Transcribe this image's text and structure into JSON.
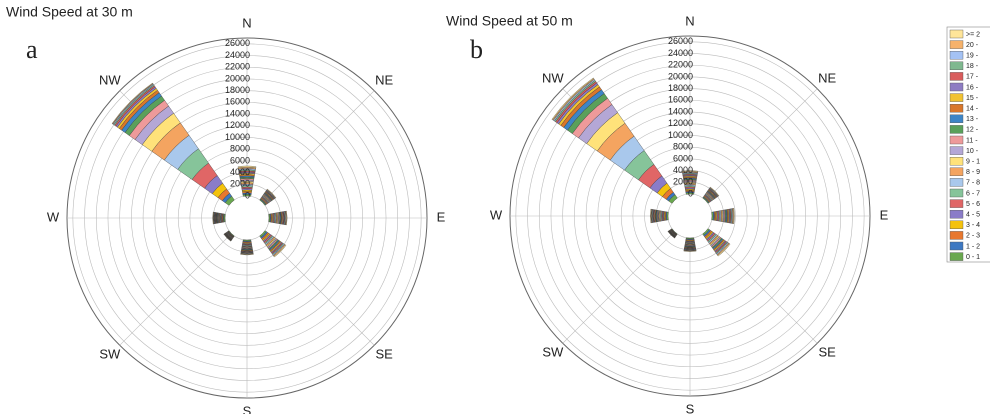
{
  "chart_data": [
    {
      "type": "windrose",
      "title": "Wind Speed at 30 m",
      "panel_label": "a",
      "categories": [
        "N",
        "NE",
        "E",
        "SE",
        "S",
        "SW",
        "W",
        "NW"
      ],
      "rlim": [
        0,
        27000
      ],
      "rticks": [
        0,
        2000,
        4000,
        6000,
        8000,
        10000,
        12000,
        14000,
        16000,
        18000,
        20000,
        22000,
        24000,
        26000
      ],
      "series": [
        {
          "name": "0 - 1",
          "color": "#6aa84f",
          "values": [
            300,
            150,
            200,
            300,
            200,
            100,
            200,
            800
          ]
        },
        {
          "name": "1 - 2",
          "color": "#3d78c2",
          "values": [
            250,
            120,
            150,
            250,
            150,
            60,
            120,
            600
          ]
        },
        {
          "name": "2 - 3",
          "color": "#e8782f",
          "values": [
            250,
            120,
            150,
            250,
            150,
            60,
            120,
            900
          ]
        },
        {
          "name": "3 - 4",
          "color": "#f4c20d",
          "values": [
            250,
            110,
            150,
            220,
            130,
            50,
            100,
            1200
          ]
        },
        {
          "name": "4 - 5",
          "color": "#8a7cc8",
          "values": [
            250,
            110,
            150,
            220,
            120,
            50,
            100,
            1600
          ]
        },
        {
          "name": "5 - 6",
          "color": "#e06666",
          "values": [
            250,
            110,
            150,
            220,
            120,
            50,
            100,
            2600
          ]
        },
        {
          "name": "6 - 7",
          "color": "#86c49a",
          "values": [
            250,
            110,
            150,
            200,
            120,
            50,
            100,
            3000
          ]
        },
        {
          "name": "7 - 8",
          "color": "#a9c8ec",
          "values": [
            250,
            110,
            150,
            200,
            120,
            50,
            100,
            2800
          ]
        },
        {
          "name": "8 - 9",
          "color": "#f4a460",
          "values": [
            250,
            100,
            150,
            200,
            110,
            50,
            90,
            2600
          ]
        },
        {
          "name": "9 - 1",
          "color": "#ffe27a",
          "values": [
            250,
            100,
            150,
            200,
            110,
            50,
            90,
            2000
          ]
        },
        {
          "name": "10 -",
          "color": "#b4a7d6",
          "values": [
            230,
            100,
            140,
            200,
            110,
            50,
            90,
            1500
          ]
        },
        {
          "name": "11 -",
          "color": "#ee9a9a",
          "values": [
            230,
            100,
            140,
            190,
            110,
            50,
            90,
            1200
          ]
        },
        {
          "name": "12 -",
          "color": "#5aa05a",
          "values": [
            230,
            100,
            140,
            190,
            110,
            50,
            90,
            900
          ]
        },
        {
          "name": "13 -",
          "color": "#3d85c6",
          "values": [
            220,
            100,
            130,
            180,
            100,
            40,
            80,
            700
          ]
        },
        {
          "name": "14 -",
          "color": "#d9772b",
          "values": [
            220,
            100,
            130,
            180,
            100,
            40,
            80,
            500
          ]
        },
        {
          "name": "15 -",
          "color": "#f1c232",
          "values": [
            220,
            100,
            130,
            180,
            100,
            40,
            80,
            400
          ]
        },
        {
          "name": "16 -",
          "color": "#8e7cc3",
          "values": [
            210,
            90,
            130,
            170,
            100,
            40,
            80,
            300
          ]
        },
        {
          "name": "17 -",
          "color": "#d95c5c",
          "values": [
            210,
            90,
            130,
            170,
            100,
            40,
            80,
            250
          ]
        },
        {
          "name": "18 -",
          "color": "#7fb88f",
          "values": [
            210,
            90,
            120,
            170,
            100,
            40,
            80,
            200
          ]
        },
        {
          "name": "19 -",
          "color": "#a4c2f4",
          "values": [
            200,
            90,
            120,
            160,
            100,
            40,
            80,
            150
          ]
        },
        {
          "name": "20 -",
          "color": "#f6b26b",
          "values": [
            200,
            90,
            120,
            160,
            100,
            40,
            80,
            100
          ]
        },
        {
          "name": ">= 2",
          "color": "#ffe599",
          "values": [
            200,
            90,
            120,
            160,
            100,
            40,
            80,
            100
          ]
        }
      ]
    },
    {
      "type": "windrose",
      "title": "Wind Speed at 50 m",
      "panel_label": "b",
      "categories": [
        "N",
        "NE",
        "E",
        "SE",
        "S",
        "SW",
        "W",
        "NW"
      ],
      "rlim": [
        0,
        27000
      ],
      "rticks": [
        0,
        2000,
        4000,
        6000,
        8000,
        10000,
        12000,
        14000,
        16000,
        18000,
        20000,
        22000,
        24000,
        26000
      ],
      "series": [
        {
          "values": [
            250,
            150,
            250,
            300,
            180,
            80,
            250,
            700
          ]
        },
        {
          "values": [
            200,
            120,
            200,
            260,
            140,
            50,
            170,
            500
          ]
        },
        {
          "values": [
            200,
            120,
            200,
            260,
            140,
            50,
            170,
            800
          ]
        },
        {
          "values": [
            200,
            110,
            190,
            230,
            120,
            40,
            150,
            1100
          ]
        },
        {
          "values": [
            200,
            110,
            190,
            230,
            110,
            40,
            150,
            1500
          ]
        },
        {
          "values": [
            200,
            110,
            190,
            230,
            110,
            40,
            150,
            2400
          ]
        },
        {
          "values": [
            200,
            110,
            180,
            220,
            110,
            40,
            140,
            2900
          ]
        },
        {
          "values": [
            200,
            110,
            180,
            220,
            110,
            40,
            140,
            3000
          ]
        },
        {
          "values": [
            190,
            100,
            180,
            210,
            100,
            40,
            140,
            2700
          ]
        },
        {
          "values": [
            190,
            100,
            180,
            210,
            100,
            40,
            140,
            2200
          ]
        },
        {
          "values": [
            180,
            100,
            170,
            210,
            100,
            40,
            130,
            1700
          ]
        },
        {
          "values": [
            180,
            100,
            170,
            200,
            100,
            40,
            130,
            1300
          ]
        },
        {
          "values": [
            180,
            100,
            170,
            200,
            100,
            40,
            130,
            1000
          ]
        },
        {
          "values": [
            170,
            100,
            160,
            190,
            90,
            30,
            120,
            800
          ]
        },
        {
          "values": [
            170,
            100,
            160,
            190,
            90,
            30,
            120,
            600
          ]
        },
        {
          "values": [
            170,
            100,
            160,
            190,
            90,
            30,
            120,
            450
          ]
        },
        {
          "values": [
            160,
            90,
            160,
            180,
            90,
            30,
            120,
            350
          ]
        },
        {
          "values": [
            160,
            90,
            160,
            180,
            90,
            30,
            120,
            300
          ]
        },
        {
          "values": [
            160,
            90,
            150,
            180,
            90,
            30,
            120,
            250
          ]
        },
        {
          "values": [
            150,
            90,
            150,
            170,
            90,
            30,
            110,
            200
          ]
        },
        {
          "values": [
            150,
            90,
            150,
            170,
            90,
            30,
            110,
            150
          ]
        },
        {
          "values": [
            150,
            90,
            150,
            170,
            90,
            30,
            110,
            150
          ]
        }
      ]
    }
  ]
}
